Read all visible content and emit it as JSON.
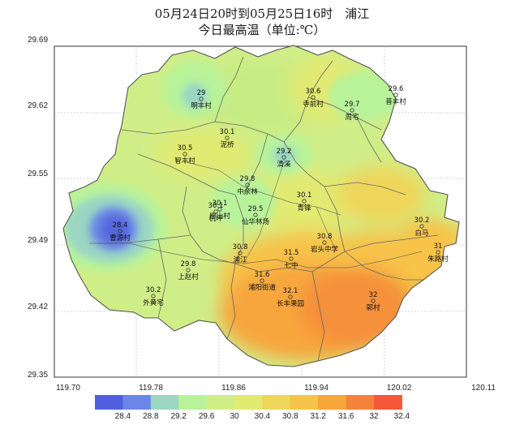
{
  "title_line1": "05月24日20时到05月25日16时　浦江",
  "title_line2": "今日最高温（单位:℃）",
  "axes": {
    "x_ticks": [
      "119.70",
      "119.78",
      "119.86",
      "119.94",
      "120.02",
      "120.11"
    ],
    "y_ticks": [
      "29.69",
      "29.62",
      "29.55",
      "29.49",
      "29.42",
      "29.35"
    ]
  },
  "legend": {
    "labels": [
      "28.4",
      "28.8",
      "29.2",
      "29.6",
      "30",
      "30.4",
      "30.8",
      "31.2",
      "31.6",
      "32",
      "32.4"
    ],
    "colors": [
      "#4f5fe0",
      "#6b86e6",
      "#9ad6c2",
      "#b8f39a",
      "#d0ee88",
      "#e2ea72",
      "#eed65a",
      "#f7c34a",
      "#f7a63c",
      "#f5823a",
      "#f5573a"
    ]
  },
  "stations": [
    {
      "value": "29",
      "name": "明丰村"
    },
    {
      "value": "30.6",
      "name": "寺前村"
    },
    {
      "value": "29.6",
      "name": "普丰村"
    },
    {
      "value": "29.7",
      "name": "周宅"
    },
    {
      "value": "30.1",
      "name": "泥桥"
    },
    {
      "value": "30.5",
      "name": "智丰村"
    },
    {
      "value": "29.2",
      "name": "清溪"
    },
    {
      "value": "29.8",
      "name": "中余林"
    },
    {
      "value": "30.1",
      "name": "檀山村"
    },
    {
      "value": "30.1",
      "name": "杭坪"
    },
    {
      "value": "29.5",
      "name": "仙华林场"
    },
    {
      "value": "30.1",
      "name": "青锋"
    },
    {
      "value": "28.4",
      "name": "曹源村"
    },
    {
      "value": "30.2",
      "name": "白马"
    },
    {
      "value": "30.8",
      "name": "岩头中学"
    },
    {
      "value": "31",
      "name": "朱路村"
    },
    {
      "value": "29.8",
      "name": "上赵村"
    },
    {
      "value": "30.8",
      "name": "浦江"
    },
    {
      "value": "31.5",
      "name": "七中"
    },
    {
      "value": "31.6",
      "name": "浦阳街道"
    },
    {
      "value": "32.1",
      "name": "长丰果园"
    },
    {
      "value": "32",
      "name": "郭村"
    },
    {
      "value": "30.2",
      "name": "外黄宅"
    }
  ]
}
